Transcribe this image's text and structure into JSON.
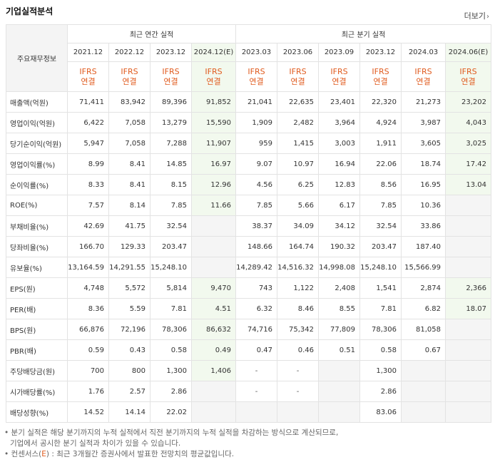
{
  "header": {
    "title": "기업실적분석",
    "more_label": "더보기",
    "more_icon": "chevron-right-icon"
  },
  "table": {
    "row_header": "주요재무정보",
    "groups": {
      "annual": "최근 연간 실적",
      "quarterly": "최근 분기 실적"
    },
    "periods": [
      "2021.12",
      "2022.12",
      "2023.12",
      "2024.12(E)",
      "2023.03",
      "2023.06",
      "2023.09",
      "2023.12",
      "2024.03",
      "2024.06(E)"
    ],
    "ifrs_line1": "IFRS",
    "ifrs_line2": "연결",
    "estimate_bg": "#f2f9ee",
    "ifrs_color": "#e05b1e",
    "rows": [
      {
        "label": "매출액(억원)",
        "values": [
          "71,411",
          "83,942",
          "89,396",
          "91,852",
          "21,041",
          "22,635",
          "23,401",
          "22,320",
          "21,273",
          "23,202"
        ]
      },
      {
        "label": "영업이익(억원)",
        "values": [
          "6,422",
          "7,058",
          "13,279",
          "15,590",
          "1,909",
          "2,482",
          "3,964",
          "4,924",
          "3,987",
          "4,043"
        ]
      },
      {
        "label": "당기순이익(억원)",
        "values": [
          "5,947",
          "7,058",
          "7,288",
          "11,907",
          "959",
          "1,415",
          "3,003",
          "1,911",
          "3,605",
          "3,025"
        ]
      },
      {
        "label": "영업이익률(%)",
        "values": [
          "8.99",
          "8.41",
          "14.85",
          "16.97",
          "9.07",
          "10.97",
          "16.94",
          "22.06",
          "18.74",
          "17.42"
        ]
      },
      {
        "label": "순이익률(%)",
        "values": [
          "8.33",
          "8.41",
          "8.15",
          "12.96",
          "4.56",
          "6.25",
          "12.83",
          "8.56",
          "16.95",
          "13.04"
        ]
      },
      {
        "label": "ROE(%)",
        "values": [
          "7.57",
          "8.14",
          "7.85",
          "11.66",
          "7.85",
          "5.66",
          "6.17",
          "7.85",
          "10.36",
          ""
        ]
      },
      {
        "label": "부채비율(%)",
        "values": [
          "42.69",
          "41.75",
          "32.54",
          "",
          "38.37",
          "34.09",
          "34.12",
          "32.54",
          "33.86",
          ""
        ]
      },
      {
        "label": "당좌비율(%)",
        "values": [
          "166.70",
          "129.33",
          "203.47",
          "",
          "148.66",
          "164.74",
          "190.32",
          "203.47",
          "187.40",
          ""
        ]
      },
      {
        "label": "유보율(%)",
        "values": [
          "13,164.59",
          "14,291.55",
          "15,248.10",
          "",
          "14,289.42",
          "14,516.32",
          "14,998.08",
          "15,248.10",
          "15,566.99",
          ""
        ]
      },
      {
        "label": "EPS(원)",
        "values": [
          "4,748",
          "5,572",
          "5,814",
          "9,470",
          "743",
          "1,122",
          "2,408",
          "1,541",
          "2,874",
          "2,366"
        ]
      },
      {
        "label": "PER(배)",
        "values": [
          "8.36",
          "5.59",
          "7.81",
          "4.51",
          "6.32",
          "8.46",
          "8.55",
          "7.81",
          "6.82",
          "18.07"
        ]
      },
      {
        "label": "BPS(원)",
        "values": [
          "66,876",
          "72,196",
          "78,306",
          "86,632",
          "74,716",
          "75,342",
          "77,809",
          "78,306",
          "81,058",
          ""
        ]
      },
      {
        "label": "PBR(배)",
        "values": [
          "0.59",
          "0.43",
          "0.58",
          "0.49",
          "0.47",
          "0.46",
          "0.51",
          "0.58",
          "0.67",
          ""
        ]
      },
      {
        "label": "주당배당금(원)",
        "values": [
          "700",
          "800",
          "1,300",
          "1,406",
          "-",
          "-",
          "",
          "1,300",
          "",
          ""
        ]
      },
      {
        "label": "시가배당률(%)",
        "values": [
          "1.76",
          "2.57",
          "2.86",
          "",
          "-",
          "-",
          "",
          "2.86",
          "",
          ""
        ]
      },
      {
        "label": "배당성향(%)",
        "values": [
          "14.52",
          "14.14",
          "22.02",
          "",
          "",
          "",
          "",
          "83.06",
          "",
          ""
        ]
      }
    ]
  },
  "notes": {
    "line1": "분기 실적은 해당 분기까지의 누적 실적에서 직전 분기까지의 누적 실적을 차감하는 방식으로 계산되므로,",
    "line2": "기업에서 공시한 분기 실적과 차이가 있을 수 있습니다.",
    "line3_prefix": "컨센서스(",
    "line3_mark": "E",
    "line3_suffix": ") : 최근 3개월간 증권사에서 발표한 전망치의 평균값입니다."
  }
}
